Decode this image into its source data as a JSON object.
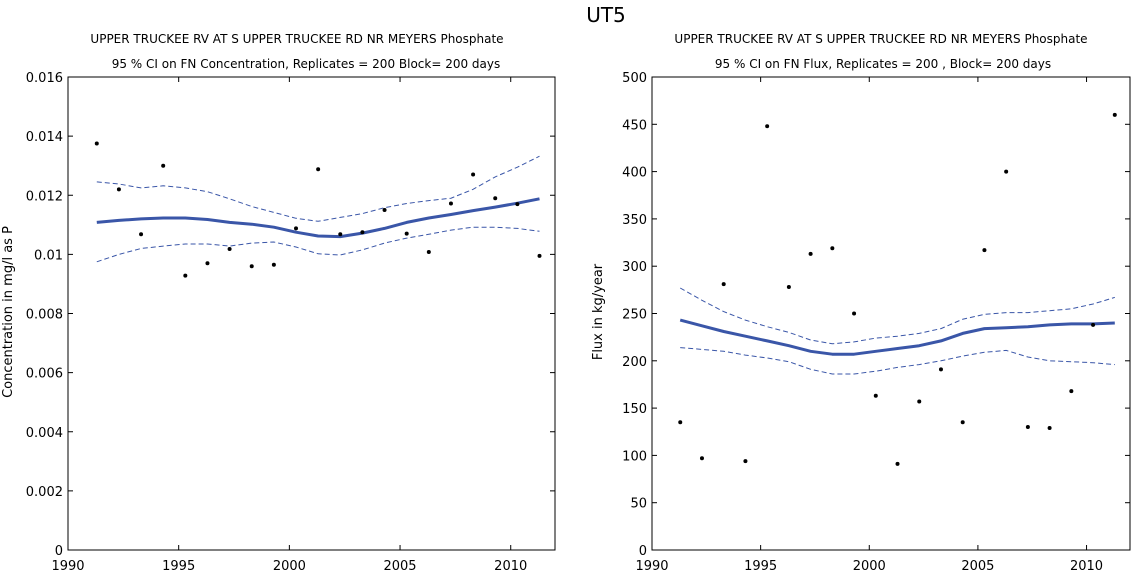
{
  "figure_title": "UT5",
  "chart_data": [
    {
      "type": "scatter",
      "title": "UPPER TRUCKEE RV AT S UPPER TRUCKEE RD NR MEYERS    Phosphate",
      "subtitle": "95 % CI on FN Concentration, Replicates = 200 Block= 200 days",
      "xlabel": "",
      "ylabel": "Concentration in mg/l as P",
      "xlim": [
        1990,
        2012
      ],
      "ylim": [
        0,
        0.016
      ],
      "xticks": [
        "1990",
        "1995",
        "2000",
        "2005",
        "2010"
      ],
      "yticks": [
        "0",
        "0.002",
        "0.004",
        "0.006",
        "0.008",
        "0.01",
        "0.012",
        "0.014",
        "0.016"
      ],
      "grid": false,
      "colors": {
        "trend": "#3a56a8",
        "points": "#000000"
      },
      "points": {
        "x": [
          1991.3,
          1992.3,
          1993.3,
          1994.3,
          1995.3,
          1996.3,
          1997.3,
          1998.3,
          1999.3,
          2000.3,
          2001.3,
          2002.3,
          2003.3,
          2004.3,
          2005.3,
          2006.3,
          2007.3,
          2008.3,
          2009.3,
          2010.3,
          2011.3
        ],
        "y": [
          0.01375,
          0.0122,
          0.01068,
          0.013,
          0.00928,
          0.0097,
          0.01018,
          0.0096,
          0.00965,
          0.01088,
          0.01288,
          0.01068,
          0.01075,
          0.0115,
          0.0107,
          0.01008,
          0.01172,
          0.0127,
          0.0119,
          0.0117,
          0.00995
        ]
      },
      "trend": {
        "x": [
          1991.3,
          1992.3,
          1993.3,
          1994.3,
          1995.3,
          1996.3,
          1997.3,
          1998.3,
          1999.3,
          2000.3,
          2001.3,
          2002.3,
          2003.3,
          2004.3,
          2005.3,
          2006.3,
          2007.3,
          2008.3,
          2009.3,
          2010.3,
          2011.3
        ],
        "y": [
          0.01108,
          0.01115,
          0.0112,
          0.01123,
          0.01123,
          0.01118,
          0.01108,
          0.01102,
          0.01092,
          0.01075,
          0.01062,
          0.0106,
          0.01072,
          0.01088,
          0.01108,
          0.01123,
          0.01135,
          0.01148,
          0.0116,
          0.01173,
          0.01188
        ]
      },
      "ci_upper": {
        "x": [
          1991.3,
          1992.3,
          1993.3,
          1994.3,
          1995.3,
          1996.3,
          1997.3,
          1998.3,
          1999.3,
          2000.3,
          2001.3,
          2002.3,
          2003.3,
          2004.3,
          2005.3,
          2006.3,
          2007.3,
          2008.3,
          2009.3,
          2010.3,
          2011.3
        ],
        "y": [
          0.01245,
          0.01238,
          0.01225,
          0.01232,
          0.01225,
          0.01212,
          0.01188,
          0.01162,
          0.01142,
          0.01122,
          0.01112,
          0.01125,
          0.01138,
          0.01158,
          0.01172,
          0.01182,
          0.0119,
          0.0122,
          0.01262,
          0.01295,
          0.01332
        ]
      },
      "ci_lower": {
        "x": [
          1991.3,
          1992.3,
          1993.3,
          1994.3,
          1995.3,
          1996.3,
          1997.3,
          1998.3,
          1999.3,
          2000.3,
          2001.3,
          2002.3,
          2003.3,
          2004.3,
          2005.3,
          2006.3,
          2007.3,
          2008.3,
          2009.3,
          2010.3,
          2011.3
        ],
        "y": [
          0.00975,
          0.01,
          0.0102,
          0.01028,
          0.01035,
          0.01035,
          0.01028,
          0.01038,
          0.01042,
          0.01025,
          0.01002,
          0.00998,
          0.01015,
          0.01038,
          0.01055,
          0.01068,
          0.01082,
          0.01092,
          0.01092,
          0.01088,
          0.01078
        ]
      }
    },
    {
      "type": "scatter",
      "title": "UPPER TRUCKEE RV AT S UPPER TRUCKEE RD NR MEYERS    Phosphate",
      "subtitle": "95 % CI on FN Flux, Replicates = 200 , Block= 200 days",
      "xlabel": "",
      "ylabel": "Flux in kg/year",
      "xlim": [
        1990,
        2012
      ],
      "ylim": [
        0,
        500
      ],
      "xticks": [
        "1990",
        "1995",
        "2000",
        "2005",
        "2010"
      ],
      "yticks": [
        "0",
        "50",
        "100",
        "150",
        "200",
        "250",
        "300",
        "350",
        "400",
        "450",
        "500"
      ],
      "grid": false,
      "colors": {
        "trend": "#3a56a8",
        "points": "#000000"
      },
      "points": {
        "x": [
          1991.3,
          1992.3,
          1993.3,
          1994.3,
          1995.3,
          1996.3,
          1997.3,
          1998.3,
          1999.3,
          2000.3,
          2001.3,
          2002.3,
          2003.3,
          2004.3,
          2005.3,
          2006.3,
          2007.3,
          2008.3,
          2009.3,
          2010.3,
          2011.3
        ],
        "y": [
          135,
          97,
          281,
          94,
          448,
          278,
          313,
          319,
          250,
          163,
          91,
          157,
          191,
          135,
          317,
          400,
          130,
          129,
          168,
          238,
          460
        ]
      },
      "trend": {
        "x": [
          1991.3,
          1992.3,
          1993.3,
          1994.3,
          1995.3,
          1996.3,
          1997.3,
          1998.3,
          1999.3,
          2000.3,
          2001.3,
          2002.3,
          2003.3,
          2004.3,
          2005.3,
          2006.3,
          2007.3,
          2008.3,
          2009.3,
          2010.3,
          2011.3
        ],
        "y": [
          243,
          237,
          231,
          226,
          221,
          216,
          210,
          207,
          207,
          210,
          213,
          216,
          221,
          229,
          234,
          235,
          236,
          238,
          239,
          239,
          240
        ]
      },
      "ci_upper": {
        "x": [
          1991.3,
          1992.3,
          1993.3,
          1994.3,
          1995.3,
          1996.3,
          1997.3,
          1998.3,
          1999.3,
          2000.3,
          2001.3,
          2002.3,
          2003.3,
          2004.3,
          2005.3,
          2006.3,
          2007.3,
          2008.3,
          2009.3,
          2010.3,
          2011.3
        ],
        "y": [
          277,
          264,
          252,
          243,
          236,
          230,
          222,
          218,
          220,
          224,
          226,
          229,
          234,
          244,
          249,
          251,
          251,
          253,
          255,
          260,
          267
        ]
      },
      "ci_lower": {
        "x": [
          1991.3,
          1992.3,
          1993.3,
          1994.3,
          1995.3,
          1996.3,
          1997.3,
          1998.3,
          1999.3,
          2000.3,
          2001.3,
          2002.3,
          2003.3,
          2004.3,
          2005.3,
          2006.3,
          2007.3,
          2008.3,
          2009.3,
          2010.3,
          2011.3
        ],
        "y": [
          214,
          212,
          210,
          206,
          203,
          199,
          191,
          186,
          186,
          189,
          193,
          196,
          200,
          205,
          209,
          211,
          204,
          200,
          199,
          198,
          196
        ]
      }
    }
  ]
}
